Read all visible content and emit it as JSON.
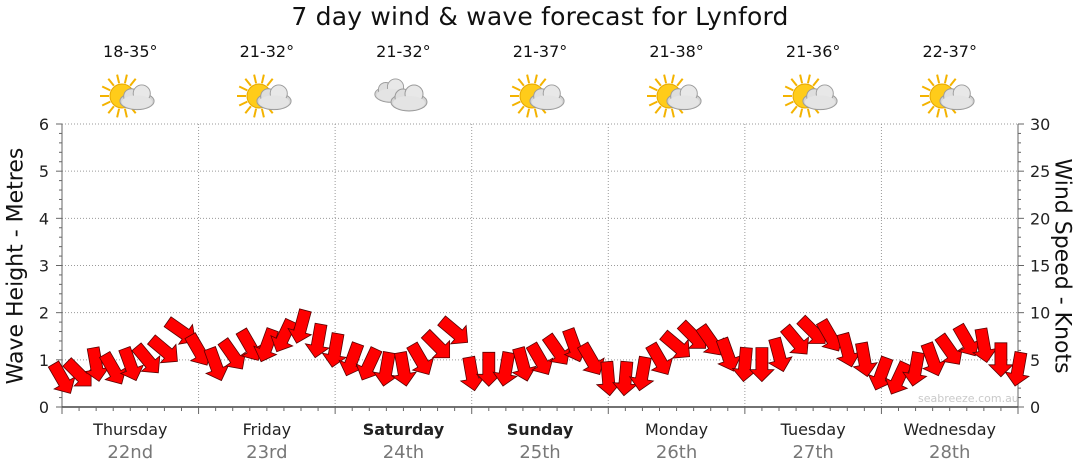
{
  "chart_data": {
    "type": "line",
    "title": "7 day wind & wave forecast for Lynford",
    "ylabel_left": "Wave Height - Metres",
    "ylabel_right": "Wind Speed - Knots",
    "ylim_left": [
      0,
      6
    ],
    "ylim_right": [
      0,
      30
    ],
    "y_ticks_left": [
      "0",
      "1",
      "2",
      "3",
      "4",
      "5",
      "6"
    ],
    "y_ticks_right": [
      "0",
      "5",
      "10",
      "15",
      "20",
      "25",
      "30"
    ],
    "grid": true,
    "days": [
      {
        "name": "Thursday",
        "date": "22nd",
        "temp": "18-35°",
        "icon": "partly-cloudy-icon",
        "bold": false
      },
      {
        "name": "Friday",
        "date": "23rd",
        "temp": "21-32°",
        "icon": "partly-cloudy-icon",
        "bold": false
      },
      {
        "name": "Saturday",
        "date": "24th",
        "temp": "21-32°",
        "icon": "cloudy-icon",
        "bold": true
      },
      {
        "name": "Sunday",
        "date": "25th",
        "temp": "21-37°",
        "icon": "partly-cloudy-icon",
        "bold": true
      },
      {
        "name": "Monday",
        "date": "26th",
        "temp": "21-38°",
        "icon": "partly-cloudy-icon",
        "bold": false
      },
      {
        "name": "Tuesday",
        "date": "27th",
        "temp": "21-36°",
        "icon": "partly-cloudy-icon",
        "bold": false
      },
      {
        "name": "Wednesday",
        "date": "28th",
        "temp": "22-37°",
        "icon": "partly-cloudy-icon",
        "bold": false
      }
    ],
    "series": [
      {
        "name": "wind",
        "unit": "knots",
        "color": "#ff0000",
        "x_day": [
          0.0,
          0.125,
          0.25,
          0.375,
          0.5,
          0.625,
          0.75,
          0.875,
          1.0,
          1.125,
          1.25,
          1.375,
          1.5,
          1.625,
          1.75,
          1.875,
          2.0,
          2.125,
          2.25,
          2.375,
          2.5,
          2.625,
          2.75,
          2.875,
          3.0,
          3.125,
          3.25,
          3.375,
          3.5,
          3.625,
          3.75,
          3.875,
          4.0,
          4.125,
          4.25,
          4.375,
          4.5,
          4.625,
          4.75,
          4.875,
          5.0,
          5.125,
          5.25,
          5.375,
          5.5,
          5.625,
          5.75,
          5.875,
          6.0,
          6.125,
          6.25,
          6.375,
          6.5,
          6.625,
          6.75,
          6.875,
          7.0
        ],
        "values": [
          3.0,
          3.5,
          4.5,
          4.0,
          4.5,
          5.0,
          6.0,
          8.0,
          6.0,
          4.5,
          5.5,
          6.5,
          6.5,
          7.5,
          8.5,
          7.0,
          6.0,
          5.0,
          4.5,
          4.0,
          4.0,
          5.0,
          6.5,
          8.0,
          3.5,
          4.0,
          4.0,
          4.5,
          5.0,
          6.0,
          6.5,
          5.0,
          3.0,
          3.0,
          3.5,
          5.0,
          6.5,
          7.5,
          7.0,
          5.5,
          4.5,
          4.5,
          5.5,
          7.0,
          8.0,
          7.5,
          6.0,
          5.0,
          3.5,
          3.0,
          4.0,
          5.0,
          6.0,
          7.0,
          6.5,
          5.0,
          4.0
        ],
        "direction_deg": [
          60,
          45,
          80,
          60,
          70,
          50,
          40,
          35,
          60,
          70,
          55,
          60,
          110,
          115,
          105,
          100,
          100,
          110,
          115,
          100,
          80,
          60,
          45,
          40,
          80,
          90,
          100,
          75,
          60,
          55,
          70,
          60,
          85,
          95,
          100,
          60,
          40,
          45,
          55,
          70,
          95,
          90,
          75,
          50,
          45,
          60,
          75,
          80,
          110,
          115,
          100,
          70,
          55,
          60,
          80,
          90,
          100
        ]
      }
    ]
  },
  "watermark": "seabreeze.com.au"
}
